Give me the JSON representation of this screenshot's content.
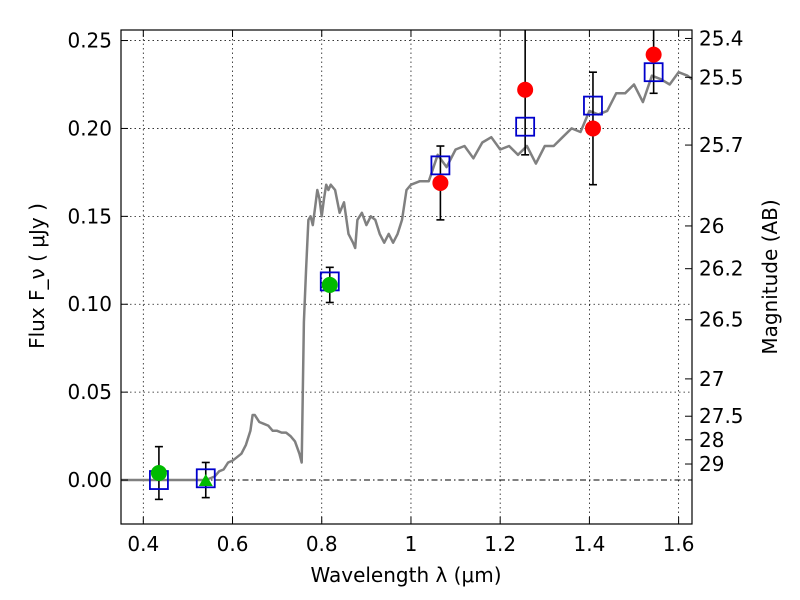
{
  "chart_data": {
    "type": "scatter",
    "xlabel": "Wavelength  λ (μm)",
    "ylabel": "Flux  F_ν  ( μJy )",
    "y2label": "Magnitude (AB)",
    "xlim": [
      0.35,
      1.63
    ],
    "ylim": [
      -0.025,
      0.256
    ],
    "grid": true,
    "x_ticks": [
      {
        "value": 0.4,
        "label": "0.4"
      },
      {
        "value": 0.6,
        "label": "0.6"
      },
      {
        "value": 0.8,
        "label": "0.8"
      },
      {
        "value": 1.0,
        "label": "1"
      },
      {
        "value": 1.2,
        "label": "1.2"
      },
      {
        "value": 1.4,
        "label": "1.4"
      },
      {
        "value": 1.6,
        "label": "1.6"
      }
    ],
    "y_ticks": [
      {
        "value": 0.0,
        "label": "0.00"
      },
      {
        "value": 0.05,
        "label": "0.05"
      },
      {
        "value": 0.1,
        "label": "0.10"
      },
      {
        "value": 0.15,
        "label": "0.15"
      },
      {
        "value": 0.2,
        "label": "0.20"
      },
      {
        "value": 0.25,
        "label": "0.25"
      }
    ],
    "y2_ticks": [
      {
        "value": 25.4,
        "label": "25.4"
      },
      {
        "value": 25.5,
        "label": "25.5"
      },
      {
        "value": 25.7,
        "label": "25.7"
      },
      {
        "value": 26,
        "label": "26"
      },
      {
        "value": 26.2,
        "label": "26.2"
      },
      {
        "value": 26.5,
        "label": "26.5"
      },
      {
        "value": 27,
        "label": "27"
      },
      {
        "value": 27.5,
        "label": "27.5"
      },
      {
        "value": 28,
        "label": "28"
      },
      {
        "value": 29,
        "label": "29"
      }
    ],
    "colors": {
      "model": "#808080",
      "observed": "#ff0000",
      "green": "#00bb00",
      "synthetic": "#0000cc",
      "errorbar": "#000000"
    },
    "model_spectrum": {
      "x": [
        0.35,
        0.4,
        0.45,
        0.5,
        0.54,
        0.56,
        0.57,
        0.58,
        0.59,
        0.6,
        0.61,
        0.62,
        0.63,
        0.64,
        0.645,
        0.65,
        0.66,
        0.67,
        0.68,
        0.69,
        0.7,
        0.71,
        0.72,
        0.73,
        0.74,
        0.75,
        0.755,
        0.76,
        0.765,
        0.77,
        0.775,
        0.78,
        0.785,
        0.79,
        0.795,
        0.8,
        0.805,
        0.81,
        0.815,
        0.82,
        0.83,
        0.84,
        0.85,
        0.86,
        0.87,
        0.875,
        0.88,
        0.89,
        0.9,
        0.91,
        0.92,
        0.93,
        0.94,
        0.95,
        0.96,
        0.97,
        0.98,
        0.99,
        1.0,
        1.02,
        1.04,
        1.06,
        1.08,
        1.1,
        1.12,
        1.14,
        1.16,
        1.18,
        1.2,
        1.22,
        1.24,
        1.26,
        1.28,
        1.3,
        1.32,
        1.34,
        1.36,
        1.38,
        1.4,
        1.42,
        1.44,
        1.46,
        1.48,
        1.5,
        1.52,
        1.54,
        1.56,
        1.58,
        1.6,
        1.62,
        1.63
      ],
      "y": [
        0.0,
        0.0,
        0.0,
        0.0,
        0.0,
        0.002,
        0.005,
        0.006,
        0.01,
        0.011,
        0.013,
        0.015,
        0.02,
        0.028,
        0.037,
        0.037,
        0.033,
        0.032,
        0.031,
        0.028,
        0.028,
        0.027,
        0.027,
        0.025,
        0.022,
        0.015,
        0.01,
        0.09,
        0.12,
        0.148,
        0.15,
        0.145,
        0.155,
        0.165,
        0.16,
        0.15,
        0.16,
        0.168,
        0.165,
        0.168,
        0.165,
        0.152,
        0.158,
        0.14,
        0.135,
        0.132,
        0.148,
        0.152,
        0.145,
        0.15,
        0.148,
        0.14,
        0.135,
        0.14,
        0.135,
        0.14,
        0.148,
        0.165,
        0.168,
        0.17,
        0.17,
        0.185,
        0.178,
        0.188,
        0.19,
        0.183,
        0.192,
        0.195,
        0.188,
        0.19,
        0.185,
        0.19,
        0.18,
        0.19,
        0.19,
        0.195,
        0.2,
        0.198,
        0.21,
        0.208,
        0.21,
        0.22,
        0.22,
        0.225,
        0.215,
        0.23,
        0.228,
        0.225,
        0.232,
        0.23,
        0.228
      ]
    },
    "observed_points": [
      {
        "x": 1.066,
        "y": 0.169,
        "err": 0.021
      },
      {
        "x": 1.256,
        "y": 0.222,
        "err": 0.037
      },
      {
        "x": 1.408,
        "y": 0.2,
        "err": 0.032
      },
      {
        "x": 1.544,
        "y": 0.242,
        "err": 0.022
      }
    ],
    "green_points": [
      {
        "x": 0.435,
        "y": 0.004,
        "err": 0.015
      },
      {
        "x": 0.818,
        "y": 0.111,
        "err": 0.01
      }
    ],
    "green_upper_limit_points": [
      {
        "x": 0.54,
        "y": 0.0,
        "err": 0.01
      }
    ],
    "synthetic_points": [
      {
        "x": 0.435,
        "y": 0.0
      },
      {
        "x": 0.54,
        "y": 0.001
      },
      {
        "x": 0.818,
        "y": 0.113
      },
      {
        "x": 1.066,
        "y": 0.179
      },
      {
        "x": 1.256,
        "y": 0.201
      },
      {
        "x": 1.408,
        "y": 0.213
      },
      {
        "x": 1.544,
        "y": 0.232
      }
    ]
  }
}
